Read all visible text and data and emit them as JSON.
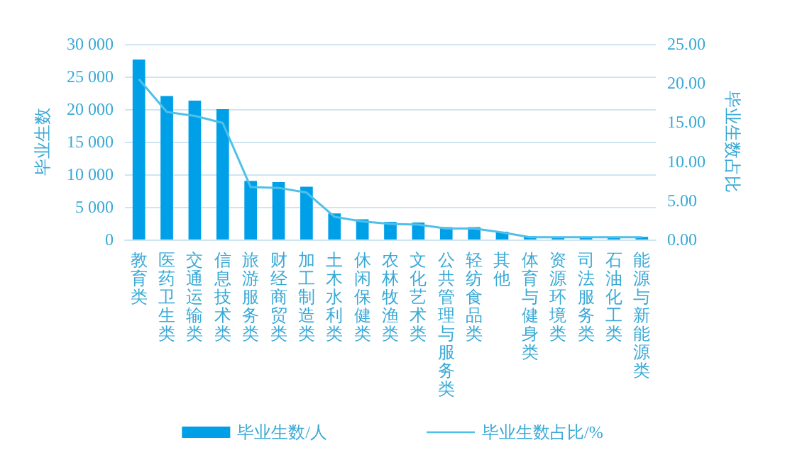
{
  "chart_data": {
    "type": "bar",
    "ylabel": "毕业生数",
    "y2label": "毕业生数占比",
    "categories": [
      "教育类",
      "医药卫生类",
      "交通运输类",
      "信息技术类",
      "旅游服务类",
      "财经商贸类",
      "加工制造类",
      "土木水利类",
      "休闲保健类",
      "农林牧渔类",
      "文化艺术类",
      "公共管理与服务类",
      "轻纺食品类",
      "其他",
      "体育与健身类",
      "资源环境类",
      "司法服务类",
      "石油化工类",
      "能源与新能源类"
    ],
    "series": [
      {
        "name": "毕业生数/人",
        "color": "#00a0e9",
        "values": [
          27600,
          22000,
          21300,
          20000,
          9000,
          8800,
          8100,
          4000,
          3100,
          2700,
          2600,
          1900,
          1900,
          1200,
          500,
          400,
          400,
          400,
          400
        ]
      },
      {
        "name": "毕业生数占比/%",
        "type": "line",
        "axis": "y2",
        "color": "#4ec0e9",
        "values": [
          20.5,
          16.3,
          15.8,
          14.9,
          6.7,
          6.6,
          6.0,
          2.9,
          2.3,
          2.0,
          1.9,
          1.4,
          1.4,
          0.9,
          0.3,
          0.3,
          0.3,
          0.3,
          0.3
        ]
      }
    ],
    "ylim": [
      0,
      30000
    ],
    "yticks": [
      {
        "value": 0,
        "label": "0"
      },
      {
        "value": 5000,
        "label": "5 000"
      },
      {
        "value": 10000,
        "label": "10 000"
      },
      {
        "value": 15000,
        "label": "15 000"
      },
      {
        "value": 20000,
        "label": "20 000"
      },
      {
        "value": 25000,
        "label": "25 000"
      },
      {
        "value": 30000,
        "label": "30 000"
      }
    ],
    "y2lim": [
      0,
      25
    ],
    "y2ticks": [
      {
        "value": 0,
        "label": "0.00"
      },
      {
        "value": 5,
        "label": "5.00"
      },
      {
        "value": 10,
        "label": "10.00"
      },
      {
        "value": 15,
        "label": "15.00"
      },
      {
        "value": 20,
        "label": "20.00"
      },
      {
        "value": 25,
        "label": "25.00"
      }
    ],
    "grid": "y",
    "legend": "bottom",
    "marker": "none",
    "line_style": "solid"
  }
}
